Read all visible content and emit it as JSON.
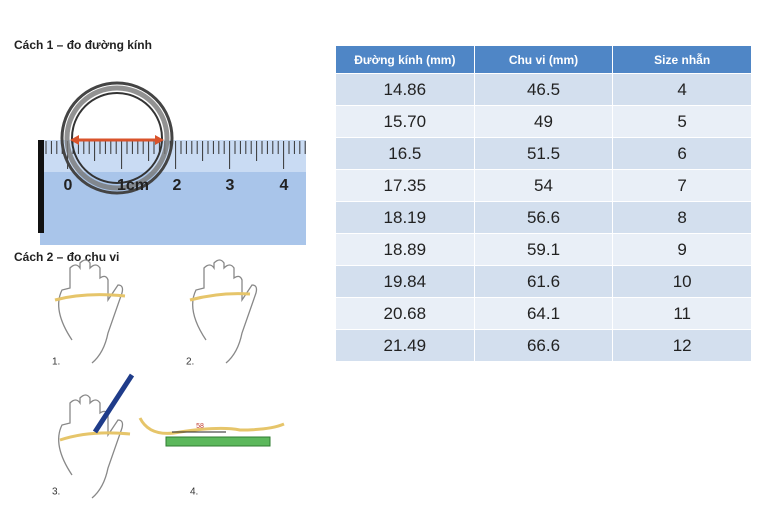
{
  "method1": {
    "title": "Cách 1 – đo đường kính",
    "ruler_labels": [
      "0",
      "1cm",
      "2",
      "3",
      "4"
    ]
  },
  "method2": {
    "title": "Cách 2 – đo chu vi",
    "steps": [
      "1.",
      "2.",
      "3.",
      "4."
    ],
    "tape_mark": "58"
  },
  "table": {
    "header": [
      "Đường kính (mm)",
      "Chu vi (mm)",
      "Size nhẫn"
    ],
    "rows": [
      [
        "14.86",
        "46.5",
        "4"
      ],
      [
        "15.70",
        "49",
        "5"
      ],
      [
        "16.5",
        "51.5",
        "6"
      ],
      [
        "17.35",
        "54",
        "7"
      ],
      [
        "18.19",
        "56.6",
        "8"
      ],
      [
        "18.89",
        "59.1",
        "9"
      ],
      [
        "19.84",
        "61.6",
        "10"
      ],
      [
        "20.68",
        "64.1",
        "11"
      ],
      [
        "21.49",
        "66.6",
        "12"
      ]
    ]
  }
}
